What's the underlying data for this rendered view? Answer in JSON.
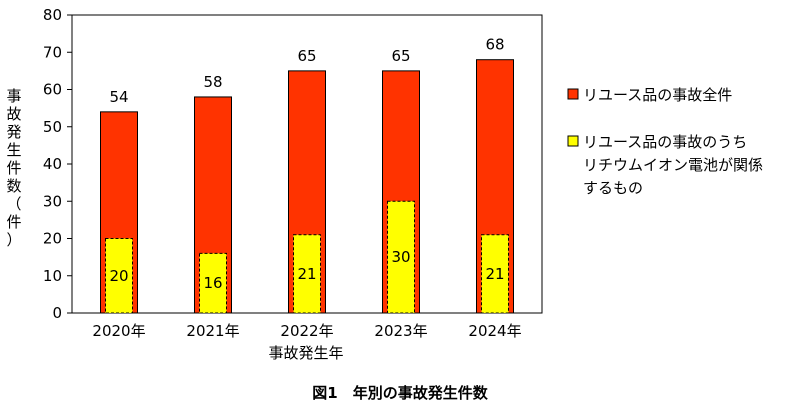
{
  "chart_data": {
    "type": "bar",
    "categories": [
      "2020年",
      "2021年",
      "2022年",
      "2023年",
      "2024年"
    ],
    "series": [
      {
        "name": "リユース品の事故全件",
        "values": [
          54,
          58,
          65,
          65,
          68
        ],
        "color": "#ff3300"
      },
      {
        "name_lines": [
          "リユース品の事故のうち",
          "リチウムイオン電池が関係",
          "するもの"
        ],
        "values": [
          20,
          16,
          21,
          30,
          21
        ],
        "color": "#ffff00"
      }
    ],
    "ylim": [
      0,
      80
    ],
    "yticks": [
      "0",
      "10",
      "20",
      "30",
      "40",
      "50",
      "60",
      "70",
      "80"
    ],
    "xlabel": "事故発生年",
    "ylabel_chars": [
      "事",
      "故",
      "発",
      "生",
      "件",
      "数",
      "（",
      "件",
      "）"
    ],
    "caption": "図1　年別の事故発生件数",
    "legend_position": "right",
    "grid": false
  }
}
